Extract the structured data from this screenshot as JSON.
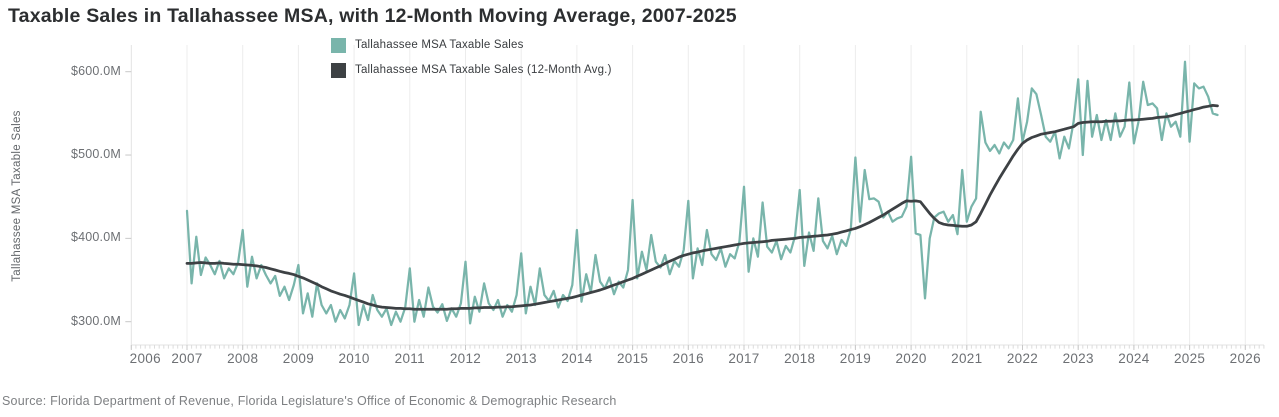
{
  "title": "Taxable Sales in Tallahassee MSA, with 12-Month Moving Average, 2007-2025",
  "source_note": "Source: Florida Department of Revenue, Florida Legislature's Office of Economic & Demographic Research",
  "y_axis_title": "Tallahassee MSA Taxable Sales",
  "legend": [
    {
      "label": "Tallahassee MSA Taxable Sales",
      "color": "#79b5ab"
    },
    {
      "label": "Tallahassee MSA Taxable Sales (12-Month Avg.)",
      "color": "#3d4144"
    }
  ],
  "colors": {
    "series_monthly": "#79b5ab",
    "series_average": "#3d4144",
    "gridline": "#ececec",
    "axis_line": "#e3e3e3",
    "minor_tick": "#dcdcdc",
    "year_tick": "#c8c8c8",
    "tick_label": "#6d7074",
    "title_text": "#2c2e30",
    "background": "#ffffff"
  },
  "chart_data": {
    "type": "line",
    "x_frequency": "monthly",
    "x_start": "2007-01",
    "x_end": "2025-07",
    "x_tick_labels": [
      "2006",
      "2007",
      "2008",
      "2009",
      "2010",
      "2011",
      "2012",
      "2013",
      "2014",
      "2015",
      "2016",
      "2017",
      "2018",
      "2019",
      "2020",
      "2021",
      "2022",
      "2023",
      "2024",
      "2025",
      "2026"
    ],
    "y_ticks": [
      {
        "value": 600,
        "label": "$600.0M"
      },
      {
        "value": 500,
        "label": "$500.0M"
      },
      {
        "value": 400,
        "label": "$400.0M"
      },
      {
        "value": 300,
        "label": "$300.0M"
      }
    ],
    "ylim": [
      272,
      632
    ],
    "xlim_years": [
      2006,
      2026.3
    ],
    "grid": "vertical-year-gridlines-only",
    "legend_position": "top-center",
    "unit": "USD millions",
    "series": [
      {
        "name": "Tallahassee MSA Taxable Sales",
        "color": "#79b5ab",
        "values": [
          433,
          346,
          402,
          356,
          377,
          368,
          357,
          373,
          352,
          364,
          357,
          371,
          410,
          342,
          378,
          352,
          368,
          356,
          346,
          355,
          331,
          342,
          326,
          344,
          368,
          310,
          334,
          306,
          346,
          320,
          310,
          320,
          300,
          314,
          304,
          320,
          358,
          296,
          320,
          302,
          332,
          314,
          306,
          316,
          296,
          312,
          300,
          317,
          364,
          300,
          326,
          306,
          341,
          318,
          311,
          321,
          301,
          316,
          306,
          322,
          372,
          298,
          330,
          312,
          346,
          322,
          314,
          326,
          306,
          320,
          312,
          332,
          382,
          310,
          342,
          320,
          364,
          332,
          325,
          337,
          317,
          332,
          325,
          344,
          410,
          324,
          357,
          335,
          380,
          348,
          340,
          353,
          333,
          348,
          341,
          362,
          446,
          352,
          384,
          362,
          404,
          372,
          365,
          380,
          357,
          373,
          366,
          386,
          445,
          352,
          388,
          368,
          410,
          381,
          374,
          388,
          366,
          381,
          376,
          396,
          462,
          360,
          400,
          378,
          443,
          390,
          383,
          397,
          375,
          391,
          383,
          403,
          458,
          367,
          407,
          385,
          448,
          397,
          388,
          403,
          381,
          398,
          391,
          411,
          497,
          420,
          482,
          447,
          448,
          444,
          425,
          432,
          420,
          424,
          426,
          438,
          498,
          406,
          404,
          328,
          400,
          425,
          430,
          432,
          420,
          428,
          405,
          482,
          420,
          438,
          448,
          552,
          515,
          505,
          512,
          502,
          515,
          508,
          518,
          568,
          516,
          540,
          580,
          573,
          548,
          522,
          516,
          528,
          496,
          522,
          508,
          540,
          591,
          500,
          589,
          522,
          548,
          518,
          542,
          518,
          550,
          522,
          534,
          587,
          514,
          540,
          588,
          560,
          562,
          556,
          518,
          550,
          534,
          540,
          522,
          612,
          516,
          586,
          580,
          582,
          570,
          550,
          548
        ]
      },
      {
        "name": "Tallahassee MSA Taxable Sales (12-Month Avg.)",
        "color": "#3d4144",
        "values": [
          370,
          370,
          370.5,
          371,
          370.5,
          370,
          370,
          370.5,
          370,
          369.5,
          369,
          369,
          368.5,
          368,
          367.5,
          367,
          366,
          365,
          363.5,
          362,
          360.5,
          359,
          358,
          356.5,
          354.5,
          352.5,
          350,
          347.5,
          345,
          342,
          339.5,
          337,
          335,
          333,
          331.5,
          329.5,
          327.5,
          325.5,
          323.5,
          321.5,
          320,
          318.5,
          317.5,
          317,
          316.5,
          316,
          316,
          315.5,
          315.5,
          315,
          315,
          315,
          315,
          315,
          315,
          315,
          315,
          315.5,
          315.5,
          316,
          316,
          316,
          316.5,
          316.5,
          317,
          317,
          317,
          317.5,
          317.5,
          318,
          318,
          318.5,
          319,
          319.5,
          320,
          321,
          322,
          323,
          324,
          325,
          326,
          327,
          328,
          329,
          330.5,
          332,
          333.5,
          335,
          336.5,
          338,
          340,
          342,
          344,
          346,
          348,
          350,
          352,
          354.5,
          357,
          359.5,
          362,
          364.5,
          367,
          370,
          372.5,
          375,
          377.5,
          379.5,
          381,
          382.5,
          383.5,
          385,
          386,
          387,
          388,
          389,
          390,
          391,
          392,
          393,
          394,
          394.5,
          395,
          395.5,
          396,
          396.5,
          397.5,
          398,
          398.5,
          399,
          399.5,
          400,
          401,
          401.5,
          402,
          402.5,
          403,
          403.5,
          404,
          405,
          406,
          407.5,
          409,
          410.5,
          412,
          414,
          416.5,
          419,
          422,
          425,
          428,
          431.5,
          435,
          438.5,
          442,
          445,
          444.5,
          445,
          444,
          437,
          430,
          424,
          419,
          417,
          416,
          415.5,
          415,
          414.5,
          414.5,
          416,
          420,
          430,
          441,
          452,
          462,
          472,
          481,
          490,
          499,
          507,
          514,
          518,
          521,
          523,
          525,
          526,
          527,
          528,
          529.5,
          531,
          532.5,
          534,
          538,
          539,
          539.5,
          540,
          540,
          540,
          540.5,
          540.5,
          541,
          541,
          541.5,
          542,
          542,
          542.5,
          543,
          543.5,
          544,
          545,
          545.5,
          546,
          547,
          548.5,
          550,
          551.5,
          553,
          554.5,
          556,
          557.5,
          558.5,
          559.5,
          559
        ]
      }
    ]
  }
}
